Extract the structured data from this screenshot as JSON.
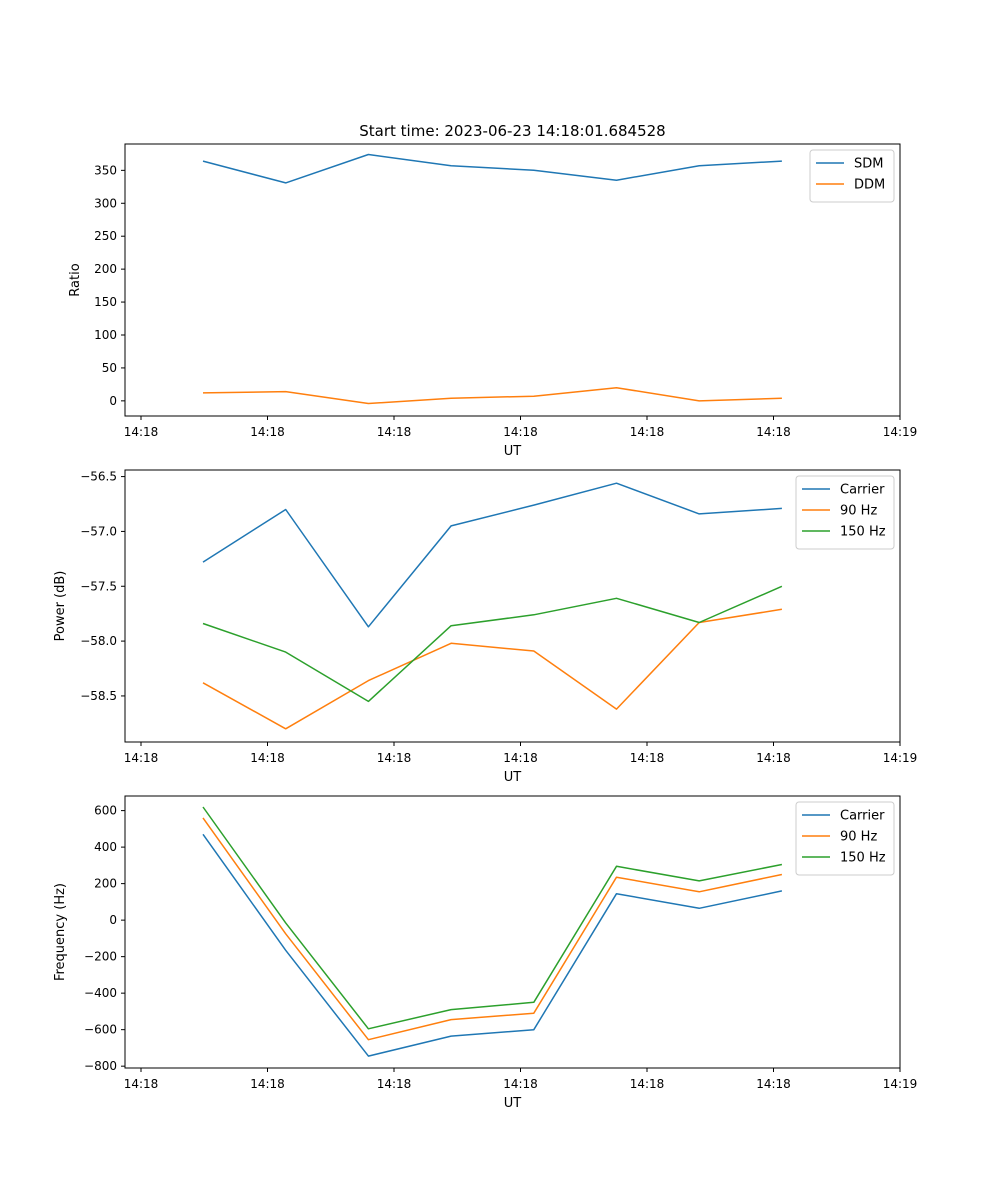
{
  "chart_data": [
    {
      "type": "line",
      "title": "Start time: 2023-06-23 14:18:01.684528",
      "xlabel": "UT",
      "ylabel": "Ratio",
      "x_ticks": [
        "14:18",
        "14:18",
        "14:18",
        "14:18",
        "14:18",
        "14:18",
        "14:19"
      ],
      "y_ticks": [
        0,
        50,
        100,
        150,
        200,
        250,
        300,
        350
      ],
      "ylim": [
        -23,
        390
      ],
      "legend_position": "top-right",
      "series": [
        {
          "name": "SDM",
          "color": "#1f77b4",
          "values": [
            364,
            331,
            374,
            357,
            350,
            335,
            357,
            364
          ]
        },
        {
          "name": "DDM",
          "color": "#ff7f0e",
          "values": [
            12,
            14,
            -4,
            4,
            7,
            20,
            0,
            4
          ]
        }
      ]
    },
    {
      "type": "line",
      "title": "",
      "xlabel": "UT",
      "ylabel": "Power (dB)",
      "x_ticks": [
        "14:18",
        "14:18",
        "14:18",
        "14:18",
        "14:18",
        "14:18",
        "14:19"
      ],
      "y_ticks": [
        -58.5,
        -58.0,
        -57.5,
        -57.0,
        -56.5
      ],
      "y_tick_labels": [
        "−58.5",
        "−58.0",
        "−57.5",
        "−57.0",
        "−56.5"
      ],
      "ylim": [
        -58.92,
        -56.44
      ],
      "legend_position": "top-right",
      "series": [
        {
          "name": "Carrier",
          "color": "#1f77b4",
          "values": [
            -57.28,
            -56.8,
            -57.87,
            -56.95,
            -56.76,
            -56.56,
            -56.84,
            -56.79
          ]
        },
        {
          "name": "90 Hz",
          "color": "#ff7f0e",
          "values": [
            -58.38,
            -58.8,
            -58.36,
            -58.02,
            -58.09,
            -58.62,
            -57.83,
            -57.71
          ]
        },
        {
          "name": "150 Hz",
          "color": "#2ca02c",
          "values": [
            -57.84,
            -58.1,
            -58.55,
            -57.86,
            -57.76,
            -57.61,
            -57.83,
            -57.5
          ]
        }
      ]
    },
    {
      "type": "line",
      "title": "",
      "xlabel": "UT",
      "ylabel": "Frequency (Hz)",
      "x_ticks": [
        "14:18",
        "14:18",
        "14:18",
        "14:18",
        "14:18",
        "14:18",
        "14:19"
      ],
      "y_ticks": [
        -800,
        -600,
        -400,
        -200,
        0,
        200,
        400,
        600
      ],
      "y_tick_labels": [
        "−800",
        "−600",
        "−400",
        "−200",
        "0",
        "200",
        "400",
        "600"
      ],
      "ylim": [
        -810,
        680
      ],
      "legend_position": "top-right",
      "series": [
        {
          "name": "Carrier",
          "color": "#1f77b4",
          "values": [
            470,
            -165,
            -745,
            -635,
            -600,
            145,
            65,
            160
          ]
        },
        {
          "name": "90 Hz",
          "color": "#ff7f0e",
          "values": [
            560,
            -75,
            -655,
            -545,
            -510,
            235,
            155,
            250
          ]
        },
        {
          "name": "150 Hz",
          "color": "#2ca02c",
          "values": [
            620,
            -15,
            -595,
            -490,
            -450,
            295,
            215,
            305
          ]
        }
      ]
    }
  ]
}
